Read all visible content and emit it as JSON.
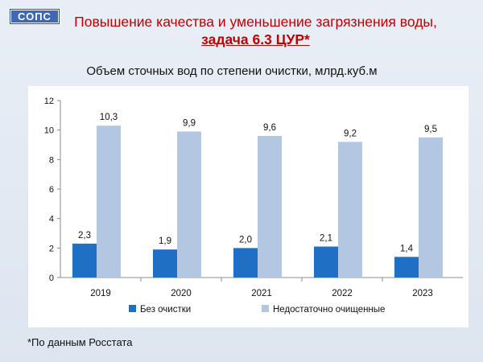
{
  "logo_text": "СОПС",
  "title_line1": "Повышение качества и уменьшение загрязнения воды,",
  "title_line2": "задача 6.3 ЦУР*",
  "source_note": "*По данным Росстата",
  "colors": {
    "title": "#c00000",
    "series1": "#1f6fc5",
    "series2": "#b3c7e3"
  },
  "chart_data": {
    "type": "bar",
    "title": "Объем сточных вод по степени очистки, млрд.куб.м",
    "categories": [
      "2019",
      "2020",
      "2021",
      "2022",
      "2023"
    ],
    "series": [
      {
        "name": "Без очистки",
        "values": [
          2.3,
          1.9,
          2.0,
          2.1,
          1.4
        ],
        "labels": [
          "2,3",
          "1,9",
          "2,0",
          "2,1",
          "1,4"
        ]
      },
      {
        "name": "Недостаточно очищенные",
        "values": [
          10.3,
          9.9,
          9.6,
          9.2,
          9.5
        ],
        "labels": [
          "10,3",
          "9,9",
          "9,6",
          "9,2",
          "9,5"
        ]
      }
    ],
    "yticks": [
      "0",
      "2",
      "4",
      "6",
      "8",
      "10",
      "12"
    ],
    "ylim": [
      0,
      12
    ],
    "grid": false,
    "legend": "bottom"
  }
}
